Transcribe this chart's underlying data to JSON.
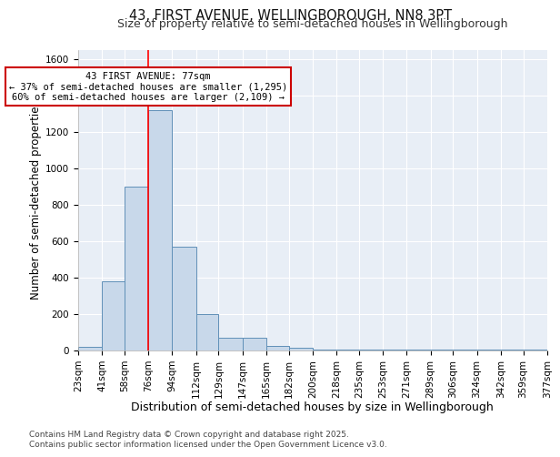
{
  "title": "43, FIRST AVENUE, WELLINGBOROUGH, NN8 3PT",
  "subtitle": "Size of property relative to semi-detached houses in Wellingborough",
  "xlabel": "Distribution of semi-detached houses by size in Wellingborough",
  "ylabel": "Number of semi-detached properties",
  "footnote1": "Contains HM Land Registry data © Crown copyright and database right 2025.",
  "footnote2": "Contains public sector information licensed under the Open Government Licence v3.0.",
  "annotation_line1": "43 FIRST AVENUE: 77sqm",
  "annotation_line2": "← 37% of semi-detached houses are smaller (1,295)",
  "annotation_line3": "60% of semi-detached houses are larger (2,109) →",
  "bar_edges": [
    23,
    41,
    58,
    76,
    94,
    112,
    129,
    147,
    165,
    182,
    200,
    218,
    235,
    253,
    271,
    289,
    306,
    324,
    342,
    359,
    377
  ],
  "bar_heights": [
    20,
    380,
    900,
    1320,
    570,
    200,
    70,
    70,
    25,
    15,
    5,
    5,
    5,
    2,
    2,
    2,
    1,
    1,
    1,
    2
  ],
  "bar_color": "#c8d8ea",
  "bar_edge_color": "#6090b8",
  "redline_x": 76,
  "ylim": [
    0,
    1650
  ],
  "yticks": [
    0,
    200,
    400,
    600,
    800,
    1000,
    1200,
    1400,
    1600
  ],
  "background_color": "#ffffff",
  "plot_bg_color": "#e8eef6",
  "grid_color": "#ffffff",
  "annotation_box_color": "#ffffff",
  "annotation_border_color": "#cc0000",
  "title_fontsize": 10.5,
  "subtitle_fontsize": 9,
  "xlabel_fontsize": 9,
  "ylabel_fontsize": 8.5,
  "tick_fontsize": 7.5,
  "footnote_fontsize": 6.5
}
